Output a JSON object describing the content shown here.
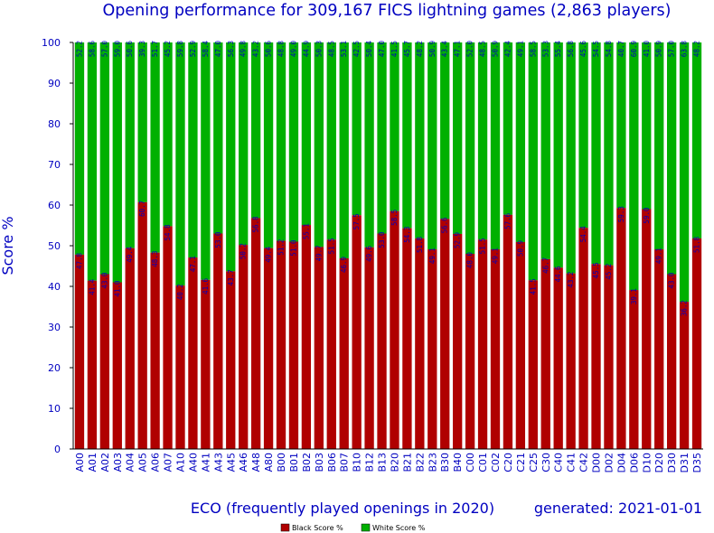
{
  "chart_data": {
    "type": "bar",
    "stacked": true,
    "title": "Opening performance for 309,167 FICS lightning games (2,863 players)",
    "xlabel": "ECO (frequently played openings in 2020)",
    "ylabel": "Score %",
    "footer": "generated: 2021-01-01",
    "ylim": [
      0,
      100
    ],
    "yticks": [
      0,
      10,
      20,
      30,
      40,
      50,
      60,
      70,
      80,
      90,
      100
    ],
    "grid": false,
    "legend_position": "bottom-center",
    "categories": [
      "A00",
      "A01",
      "A02",
      "A03",
      "A04",
      "A05",
      "A06",
      "A07",
      "A10",
      "A40",
      "A41",
      "A43",
      "A45",
      "A46",
      "A48",
      "A80",
      "B00",
      "B01",
      "B02",
      "B03",
      "B06",
      "B07",
      "B10",
      "B12",
      "B13",
      "B20",
      "B21",
      "B22",
      "B23",
      "B30",
      "B40",
      "C00",
      "C01",
      "C02",
      "C20",
      "C21",
      "C25",
      "C30",
      "C40",
      "C41",
      "C42",
      "D00",
      "D02",
      "D04",
      "D06",
      "D10",
      "D20",
      "D30",
      "D31",
      "D35"
    ],
    "series": [
      {
        "name": "Black Score %",
        "color": "#b00000",
        "values": [
          47.8,
          41.4,
          43.0,
          41.0,
          49.4,
          60.7,
          48.3,
          54.8,
          40.2,
          47.1,
          41.6,
          53.0,
          43.7,
          50.2,
          56.8,
          49.4,
          51.2,
          51.0,
          55.1,
          49.7,
          51.5,
          46.9,
          57.5,
          49.6,
          53.0,
          58.5,
          54.3,
          51.8,
          49.1,
          56.6,
          52.9,
          48.0,
          51.5,
          49.1,
          57.6,
          50.9,
          41.5,
          46.7,
          44.6,
          43.2,
          54.4,
          45.5,
          45.2,
          59.3,
          39.1,
          59.0,
          49.1,
          43.0,
          36.2,
          51.8
        ],
        "labels": [
          "47.8",
          "41.4",
          "43.0",
          "41.0",
          "49.4",
          "60.7",
          "48.3",
          "54.8",
          "40.2",
          "47.1",
          "41.6",
          "53.0",
          "43.7",
          "50.2",
          "56.8",
          "49.4",
          "51.2",
          "51.0",
          "55.1",
          "49.7",
          "51.5",
          "46.9",
          "57.5",
          "49.6",
          "53.0",
          "58.5",
          "54.3",
          "51.8",
          "49.1",
          "56.6",
          "52.9",
          "48.0",
          "51.5",
          "49.1",
          "57.6",
          "50.9",
          "41.5",
          "46.7",
          "44.6",
          "43.2",
          "54.4",
          "45.5",
          "45.2",
          "59.3",
          "39.1",
          "59.0",
          "49.1",
          "43.0",
          "36.2",
          "51.8"
        ]
      },
      {
        "name": "White Score %",
        "color": "#00b000",
        "values": [
          52.2,
          58.6,
          57.0,
          59.0,
          50.6,
          39.3,
          51.7,
          45.2,
          59.8,
          52.9,
          58.4,
          47.0,
          56.3,
          49.8,
          43.2,
          50.6,
          48.8,
          49.0,
          44.9,
          50.3,
          48.5,
          53.1,
          42.5,
          50.4,
          47.0,
          41.5,
          45.7,
          48.2,
          50.9,
          43.4,
          47.1,
          52.0,
          48.5,
          50.9,
          42.4,
          49.1,
          58.5,
          53.3,
          55.4,
          56.8,
          45.6,
          54.5,
          54.8,
          40.7,
          60.9,
          41.0,
          50.9,
          57.0,
          63.8,
          48.2
        ],
        "labels": [
          "52.2",
          "58.6",
          "57.0",
          "59.0",
          "50.6",
          "39.3",
          "51.7",
          "45.2",
          "59.8",
          "52.9",
          "58.4",
          "47.0",
          "56.3",
          "49.8",
          "43.2",
          "50.6",
          "48.8",
          "49.0",
          "44.9",
          "50.3",
          "48.5",
          "53.1",
          "42.5",
          "50.4",
          "47.0",
          "41.5",
          "45.7",
          "48.2",
          "50.9",
          "43.4",
          "47.1",
          "52.0",
          "48.5",
          "50.9",
          "42.4",
          "49.1",
          "58.5",
          "53.3",
          "55.4",
          "56.8",
          "45.6",
          "54.5",
          "54.8",
          "40.7",
          "60.9",
          "41.0",
          "50.9",
          "57.0",
          "63.8",
          "48.2"
        ]
      }
    ]
  }
}
